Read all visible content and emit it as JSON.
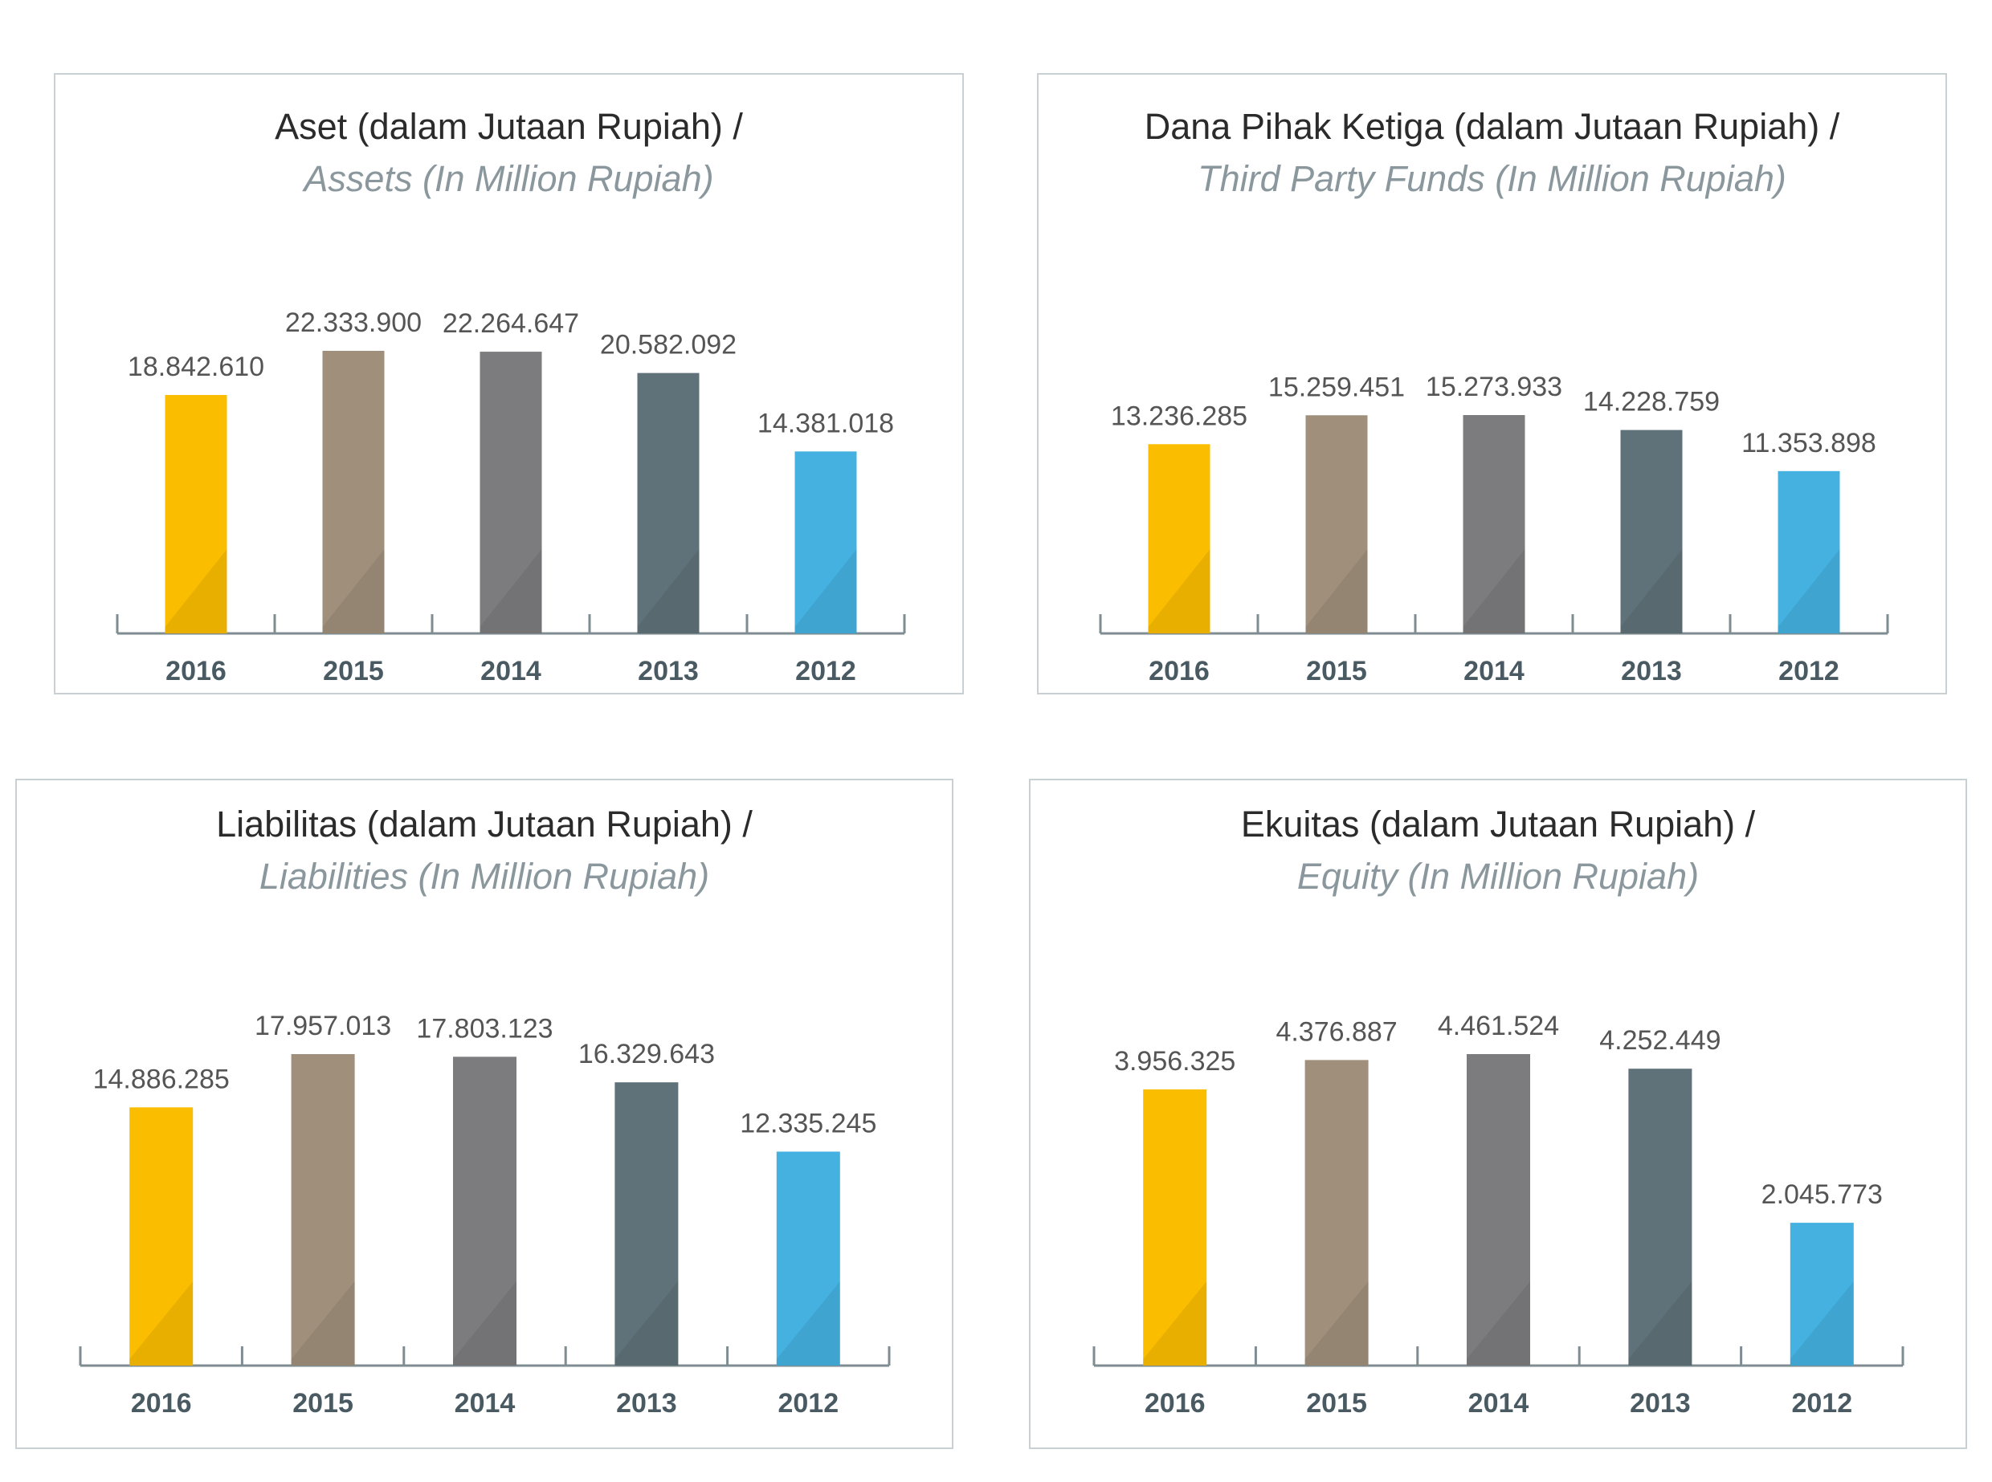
{
  "colors": {
    "2016": "#fbbd00",
    "2015": "#a08f7b",
    "2014": "#7c7b7d",
    "2013": "#5f7179",
    "2012": "#45b1e1",
    "axis": "#7f8c92"
  },
  "chart_data": [
    {
      "type": "bar",
      "title": "Aset (dalam Jutaan Rupiah) /",
      "subtitle": "Assets (In Million Rupiah)",
      "categories": [
        "2016",
        "2015",
        "2014",
        "2013",
        "2012"
      ],
      "values": [
        18842610,
        22333900,
        22264647,
        20582092,
        14381018
      ],
      "value_labels": [
        "18.842.610",
        "22.333.900",
        "22.264.647",
        "20.582.092",
        "14.381.018"
      ],
      "ylim": [
        0,
        22333900
      ],
      "grid": false
    },
    {
      "type": "bar",
      "title": "Dana Pihak Ketiga (dalam Jutaan Rupiah) /",
      "subtitle": "Third Party Funds (In Million Rupiah)",
      "categories": [
        "2016",
        "2015",
        "2014",
        "2013",
        "2012"
      ],
      "values": [
        13236285,
        15259451,
        15273933,
        14228759,
        11353898
      ],
      "value_labels": [
        "13.236.285",
        "15.259.451",
        "15.273.933",
        "14.228.759",
        "11.353.898"
      ],
      "ylim": [
        0,
        15273933
      ],
      "grid": false
    },
    {
      "type": "bar",
      "title": "Liabilitas (dalam Jutaan Rupiah) /",
      "subtitle": "Liabilities (In Million Rupiah)",
      "categories": [
        "2016",
        "2015",
        "2014",
        "2013",
        "2012"
      ],
      "values": [
        14886285,
        17957013,
        17803123,
        16329643,
        12335245
      ],
      "value_labels": [
        "14.886.285",
        "17.957.013",
        "17.803.123",
        "16.329.643",
        "12.335.245"
      ],
      "ylim": [
        0,
        17957013
      ],
      "grid": false
    },
    {
      "type": "bar",
      "title": "Ekuitas (dalam Jutaan Rupiah) /",
      "subtitle": "Equity (In Million Rupiah)",
      "categories": [
        "2016",
        "2015",
        "2014",
        "2013",
        "2012"
      ],
      "values": [
        3956325,
        4376887,
        4461524,
        4252449,
        2045773
      ],
      "value_labels": [
        "3.956.325",
        "4.376.887",
        "4.461.524",
        "4.252.449",
        "2.045.773"
      ],
      "ylim": [
        0,
        4461524
      ],
      "grid": false
    }
  ]
}
